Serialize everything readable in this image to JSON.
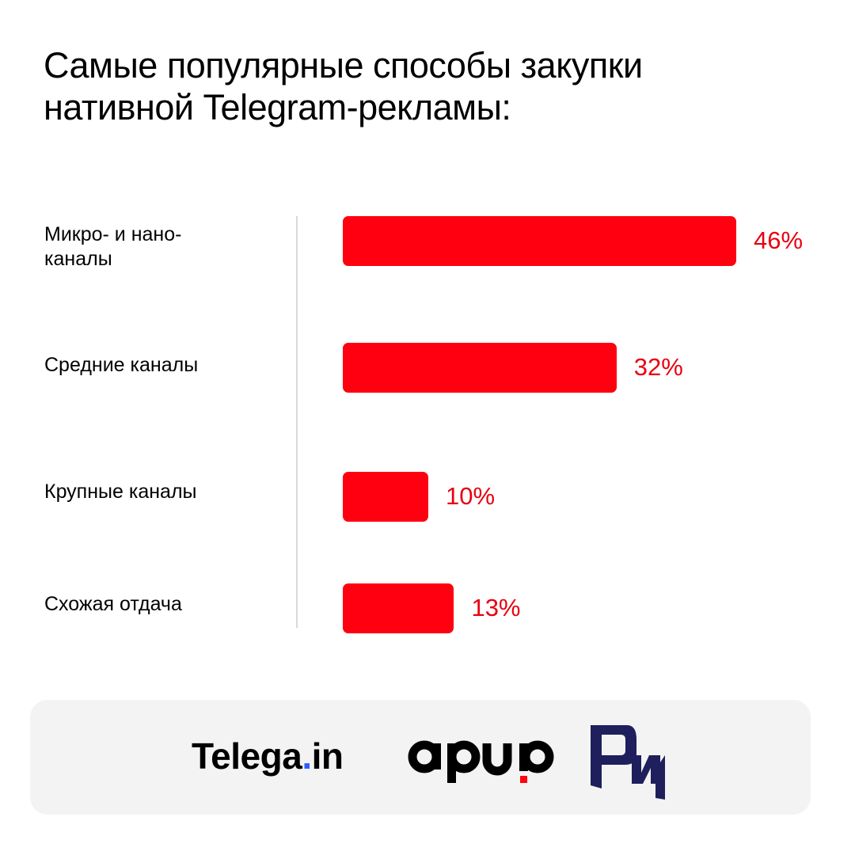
{
  "title_lines": [
    "Самые популярные способы закупки",
    "нативной Telegram-рекламы:"
  ],
  "colors": {
    "bar": "#ff0010",
    "value": "#e8000f",
    "rir_logo": "#1e1f5c",
    "arir_dot": "#ff0010",
    "telega_dot": "#2f5cff"
  },
  "chart_data": {
    "type": "bar",
    "orientation": "horizontal",
    "title": "Самые популярные способы закупки нативной Telegram-рекламы:",
    "categories": [
      "Микро- и нано-каналы",
      "Средние каналы",
      "Крупные каналы",
      "Схожая отдача"
    ],
    "category_lines": [
      [
        "Микро- и нано-",
        "каналы"
      ],
      [
        "Средние каналы"
      ],
      [
        "Крупные каналы"
      ],
      [
        "Схожая отдача"
      ]
    ],
    "values": [
      46,
      32,
      10,
      13
    ],
    "value_labels": [
      "46%",
      "32%",
      "10%",
      "13%"
    ],
    "unit": "%",
    "xlim": [
      0,
      46
    ],
    "grid": false,
    "legend": "none"
  },
  "footer": {
    "logos": [
      "telega-in-logo",
      "arir-logo",
      "rir-logo"
    ],
    "telega": {
      "main": "Telega",
      "dot": ".",
      "tail": "in"
    }
  }
}
